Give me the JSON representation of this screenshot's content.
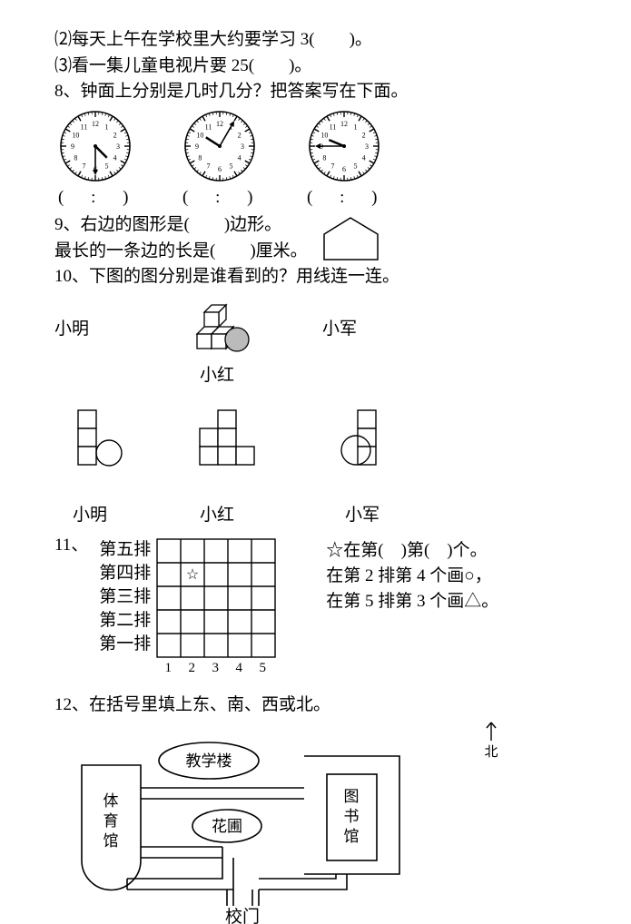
{
  "q2": "⑵每天上午在学校里大约要学习 3(　　)。",
  "q3": "⑶看一集儿童电视片要 25(　　)。",
  "q8": "8、钟面上分别是几时几分？把答案写在下面。",
  "clock_ans": "(　 :　 )",
  "q9a": "9、右边的图形是(　　)边形。",
  "q9b": "最长的一条边的长是(　　)厘米。",
  "q10": "10、下图的图分别是谁看到的？用线连一连。",
  "names": {
    "ming": "小明",
    "hong": "小红",
    "jun": "小军"
  },
  "q11": "11、",
  "rows": {
    "r5": "第五排",
    "r4": "第四排",
    "r3": "第三排",
    "r2": "第二排",
    "r1": "第一排"
  },
  "q11_nums": [
    "1",
    "2",
    "3",
    "4",
    "5"
  ],
  "q11_right": {
    "a": "☆在第(　)第(　)个。",
    "b": "在第 2 排第 4 个画○，",
    "c": "在第 5 排第 3 个画△。"
  },
  "q12": "12、在括号里填上东、南、西或北。",
  "north": "北",
  "map": {
    "jxl": "教学楼",
    "tyg": "体\n育\n馆",
    "hp": "花圃",
    "tsg": "图\n书\n馆",
    "xm": "校门"
  },
  "clocks": [
    {
      "hour": 4.5,
      "minute": 30
    },
    {
      "hour": 10.08,
      "minute": 5
    },
    {
      "hour": 9.75,
      "minute": 45
    }
  ],
  "colors": {
    "stroke": "#000",
    "bg": "#fff"
  }
}
